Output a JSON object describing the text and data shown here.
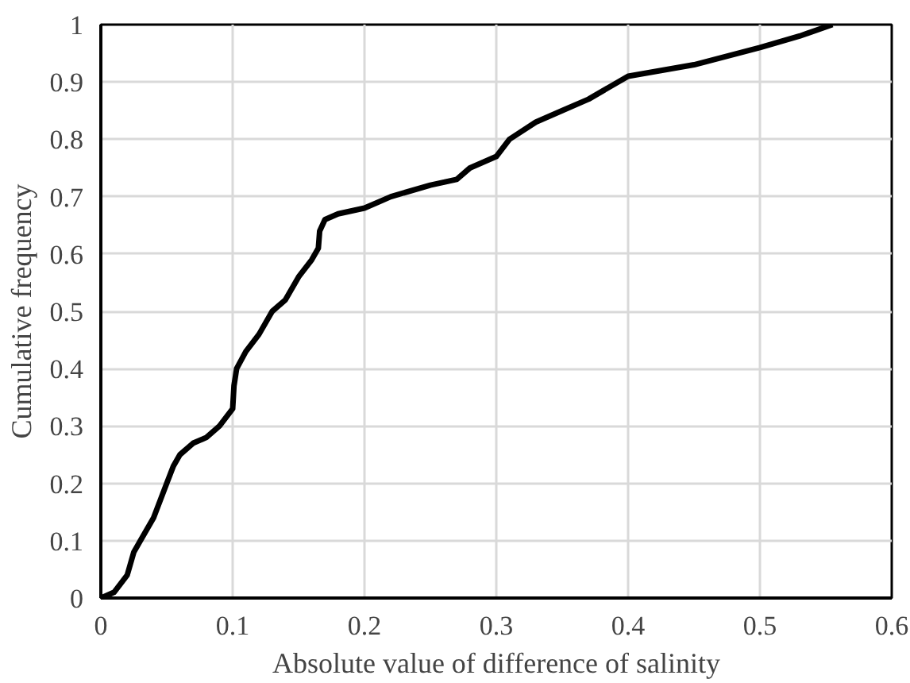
{
  "chart_data": {
    "type": "line",
    "xlabel": "Absolute value of difference of salinity",
    "ylabel": "Cumulative frequency",
    "xlim": [
      0,
      0.6
    ],
    "xticks": [
      0,
      0.1,
      0.2,
      0.3,
      0.4,
      0.5,
      0.6
    ],
    "ylim": [
      0,
      1
    ],
    "yticks": [
      0,
      0.1,
      0.2,
      0.3,
      0.4,
      0.5,
      0.6,
      0.7,
      0.8,
      0.9,
      1
    ],
    "grid": true,
    "series": [
      {
        "color": "#000000",
        "x": [
          0,
          0.01,
          0.02,
          0.025,
          0.03,
          0.04,
          0.05,
          0.055,
          0.06,
          0.07,
          0.08,
          0.09,
          0.1,
          0.101,
          0.103,
          0.11,
          0.12,
          0.13,
          0.14,
          0.15,
          0.16,
          0.165,
          0.166,
          0.17,
          0.18,
          0.2,
          0.22,
          0.25,
          0.27,
          0.28,
          0.3,
          0.31,
          0.33,
          0.35,
          0.37,
          0.4,
          0.45,
          0.5,
          0.53,
          0.555
        ],
        "values": [
          0,
          0.01,
          0.04,
          0.08,
          0.1,
          0.14,
          0.2,
          0.23,
          0.25,
          0.27,
          0.28,
          0.3,
          0.33,
          0.37,
          0.4,
          0.43,
          0.46,
          0.5,
          0.52,
          0.56,
          0.59,
          0.61,
          0.64,
          0.66,
          0.67,
          0.68,
          0.7,
          0.72,
          0.73,
          0.75,
          0.77,
          0.8,
          0.83,
          0.85,
          0.87,
          0.91,
          0.93,
          0.96,
          0.98,
          1.0
        ]
      }
    ]
  }
}
